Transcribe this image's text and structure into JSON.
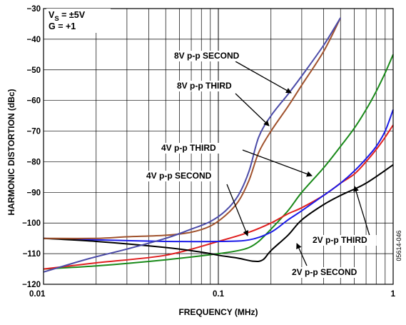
{
  "chart_data": {
    "type": "line",
    "xlabel": "FREQUENCY (MHz)",
    "ylabel": "HARMONIC DISTORTION (dBc)",
    "x_scale": "log",
    "xlim": [
      0.01,
      1
    ],
    "ylim": [
      -120,
      -30
    ],
    "grid": true,
    "x_ticks": [
      {
        "value": 0.01,
        "label": "0.01"
      },
      {
        "value": 0.1,
        "label": "0.1"
      },
      {
        "value": 1,
        "label": "1"
      }
    ],
    "y_ticks": [
      {
        "value": -30,
        "label": "−30"
      },
      {
        "value": -40,
        "label": "−40"
      },
      {
        "value": -50,
        "label": "−50"
      },
      {
        "value": -60,
        "label": "−60"
      },
      {
        "value": -70,
        "label": "−70"
      },
      {
        "value": -80,
        "label": "−80"
      },
      {
        "value": -90,
        "label": "−90"
      },
      {
        "value": -100,
        "label": "−100"
      },
      {
        "value": -110,
        "label": "−110"
      },
      {
        "value": -120,
        "label": "−120"
      }
    ],
    "conditions": {
      "vs_main": "V",
      "vs_sub": "S",
      "vs_rest": " = ±5V",
      "gain": "G = +1"
    },
    "figure_id": "05614-046",
    "series": [
      {
        "name": "8V p-p SECOND",
        "color": "#4b4ba8",
        "x": [
          0.01,
          0.015,
          0.02,
          0.03,
          0.05,
          0.07,
          0.09,
          0.11,
          0.13,
          0.15,
          0.17,
          0.2,
          0.25,
          0.3,
          0.4,
          0.5
        ],
        "y": [
          -116,
          -113,
          -111,
          -108.5,
          -105,
          -102,
          -99.5,
          -96,
          -91,
          -83,
          -72,
          -65,
          -58,
          -52,
          -42,
          -33
        ]
      },
      {
        "name": "8V p-p THIRD",
        "color": "#a0522d",
        "x": [
          0.01,
          0.02,
          0.03,
          0.05,
          0.07,
          0.09,
          0.11,
          0.13,
          0.15,
          0.17,
          0.2,
          0.25,
          0.3,
          0.4,
          0.5
        ],
        "y": [
          -105,
          -105,
          -104.5,
          -104,
          -103,
          -101,
          -97.5,
          -93,
          -86,
          -77,
          -70,
          -62,
          -55,
          -44,
          -33
        ]
      },
      {
        "name": "4V p-p THIRD",
        "color": "#1a8a1a",
        "x": [
          0.01,
          0.02,
          0.05,
          0.1,
          0.13,
          0.15,
          0.17,
          0.2,
          0.25,
          0.3,
          0.4,
          0.5,
          0.6,
          0.7,
          0.8,
          0.9,
          1.0
        ],
        "y": [
          -115,
          -114,
          -112,
          -110,
          -109,
          -108,
          -106,
          -102,
          -96,
          -90,
          -82,
          -75,
          -69,
          -63,
          -57,
          -51,
          -45
        ]
      },
      {
        "name": "4V p-p SECOND",
        "color": "#e02020",
        "x": [
          0.01,
          0.02,
          0.05,
          0.1,
          0.15,
          0.2,
          0.25,
          0.3,
          0.4,
          0.5,
          0.6,
          0.7,
          0.8,
          0.9,
          1.0
        ],
        "y": [
          -115,
          -113,
          -110.5,
          -106,
          -103,
          -100,
          -97,
          -95,
          -91,
          -87,
          -84,
          -80,
          -76,
          -72,
          -68
        ]
      },
      {
        "name": "2V p-p THIRD",
        "color": "#1a1ae8",
        "x": [
          0.01,
          0.02,
          0.05,
          0.1,
          0.15,
          0.2,
          0.25,
          0.3,
          0.4,
          0.5,
          0.6,
          0.7,
          0.8,
          0.9,
          1.0
        ],
        "y": [
          -105,
          -105.5,
          -106,
          -106,
          -105.5,
          -103,
          -99,
          -96,
          -91,
          -87,
          -83,
          -79,
          -75,
          -70,
          -63
        ]
      },
      {
        "name": "2V p-p SECOND",
        "color": "#000000",
        "x": [
          0.01,
          0.02,
          0.05,
          0.08,
          0.1,
          0.13,
          0.16,
          0.18,
          0.2,
          0.25,
          0.3,
          0.4,
          0.5,
          0.7,
          1.0
        ],
        "y": [
          -105,
          -106,
          -108,
          -109.5,
          -110.5,
          -111.5,
          -112.5,
          -112,
          -109,
          -104,
          -99,
          -94,
          -91,
          -87,
          -81
        ]
      }
    ],
    "annotations": [
      {
        "text": "8V p-p SECOND",
        "series": "8V p-p SECOND"
      },
      {
        "text": "8V p-p THIRD",
        "series": "8V p-p THIRD"
      },
      {
        "text": "4V p-p THIRD",
        "series": "4V p-p THIRD"
      },
      {
        "text": "4V p-p SECOND",
        "series": "4V p-p SECOND"
      },
      {
        "text": "2V p-p THIRD",
        "series": "2V p-p THIRD"
      },
      {
        "text": "2V p-p SECOND",
        "series": "2V p-p SECOND"
      }
    ]
  }
}
